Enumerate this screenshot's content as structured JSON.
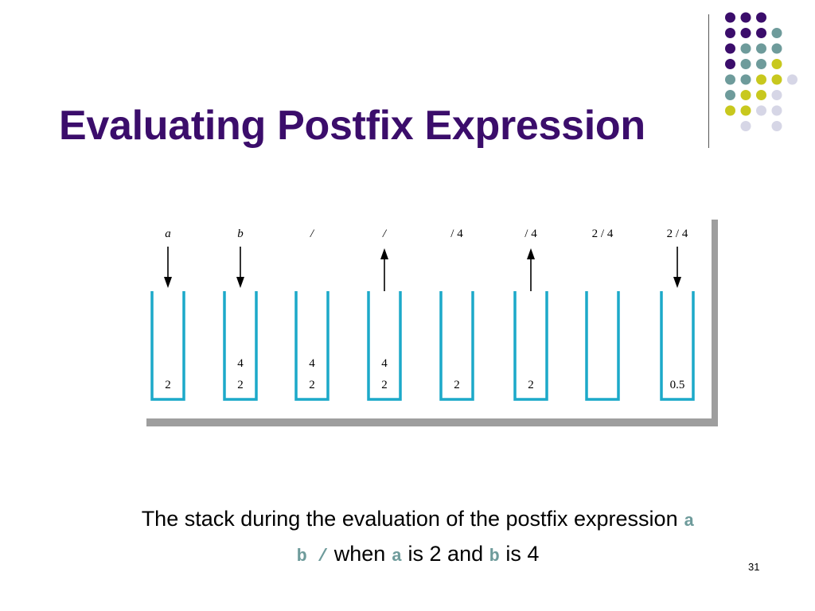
{
  "slide": {
    "title": "Evaluating Postfix Expression",
    "page_number": "31",
    "caption": {
      "line1_text": "The stack during the evaluation of the postfix expression ",
      "line1_code": "a",
      "line2_code1": "b /",
      "line2_text1": " when ",
      "line2_code2": "a",
      "line2_text2": " is 2 and ",
      "line2_code3": "b",
      "line2_text3": " is 4"
    },
    "colors": {
      "title": "#3b0d6b",
      "stack_outline": "#1ca9c9",
      "shadow": "#9e9e9e",
      "dot_purple": "#3b0d6b",
      "dot_teal": "#6e9b9b",
      "dot_yellow": "#c8c81e",
      "dot_lavender": "#d6d6e6"
    }
  },
  "figure": {
    "steps": [
      {
        "label": "a",
        "italic": true,
        "arrow": "down",
        "stack": [
          "2"
        ]
      },
      {
        "label": "b",
        "italic": true,
        "arrow": "down",
        "stack": [
          "2",
          "4"
        ]
      },
      {
        "label": "/",
        "italic": true,
        "arrow": "none",
        "stack": [
          "2",
          "4"
        ]
      },
      {
        "label": "/",
        "italic": true,
        "arrow": "up",
        "stack": [
          "2",
          "4"
        ]
      },
      {
        "label": "/ 4",
        "italic": false,
        "arrow": "none",
        "stack": [
          "2"
        ]
      },
      {
        "label": "/ 4",
        "italic": false,
        "arrow": "up",
        "stack": [
          "2"
        ]
      },
      {
        "label": "2 / 4",
        "italic": false,
        "arrow": "none",
        "stack": []
      },
      {
        "label": "2 / 4",
        "italic": false,
        "arrow": "down",
        "stack": [
          "0.5"
        ]
      }
    ]
  }
}
